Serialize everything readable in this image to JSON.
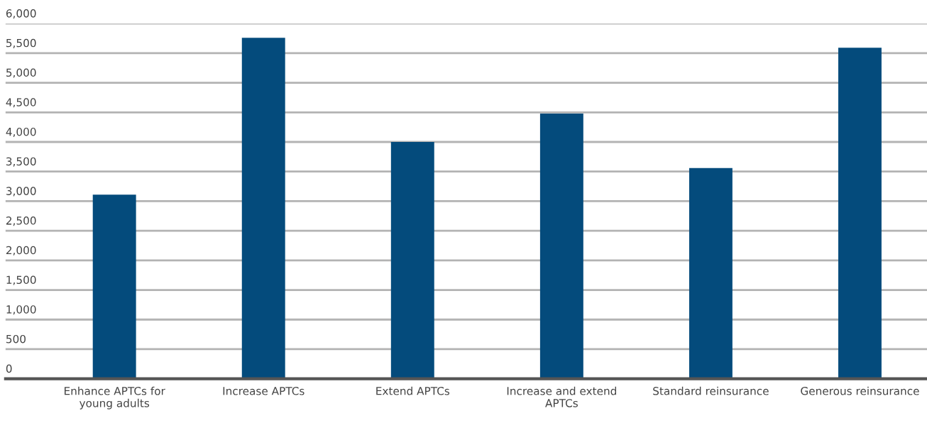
{
  "chart_data": {
    "type": "bar",
    "categories": [
      "Enhance APTCs for\nyoung adults",
      "Increase APTCs",
      "Extend APTCs",
      "Increase and extend\nAPTCs",
      "Standard reinsurance",
      "Generous reinsurance"
    ],
    "values": [
      3110,
      5760,
      4000,
      4480,
      3560,
      5590
    ],
    "color": "#044b7c",
    "ylim": [
      0,
      6000
    ],
    "yticks": [
      {
        "value": 0,
        "label": "0"
      },
      {
        "value": 500,
        "label": "500"
      },
      {
        "value": 1000,
        "label": "1,000"
      },
      {
        "value": 1500,
        "label": "1,500"
      },
      {
        "value": 2000,
        "label": "2,000"
      },
      {
        "value": 2500,
        "label": "2,500"
      },
      {
        "value": 3000,
        "label": "3,000"
      },
      {
        "value": 3500,
        "label": "3,500"
      },
      {
        "value": 4000,
        "label": "4,000"
      },
      {
        "value": 4500,
        "label": "4,500"
      },
      {
        "value": 5000,
        "label": "5,000"
      },
      {
        "value": 5500,
        "label": "5,500"
      },
      {
        "value": 6000,
        "label": "6,000"
      }
    ],
    "grid": "y"
  }
}
